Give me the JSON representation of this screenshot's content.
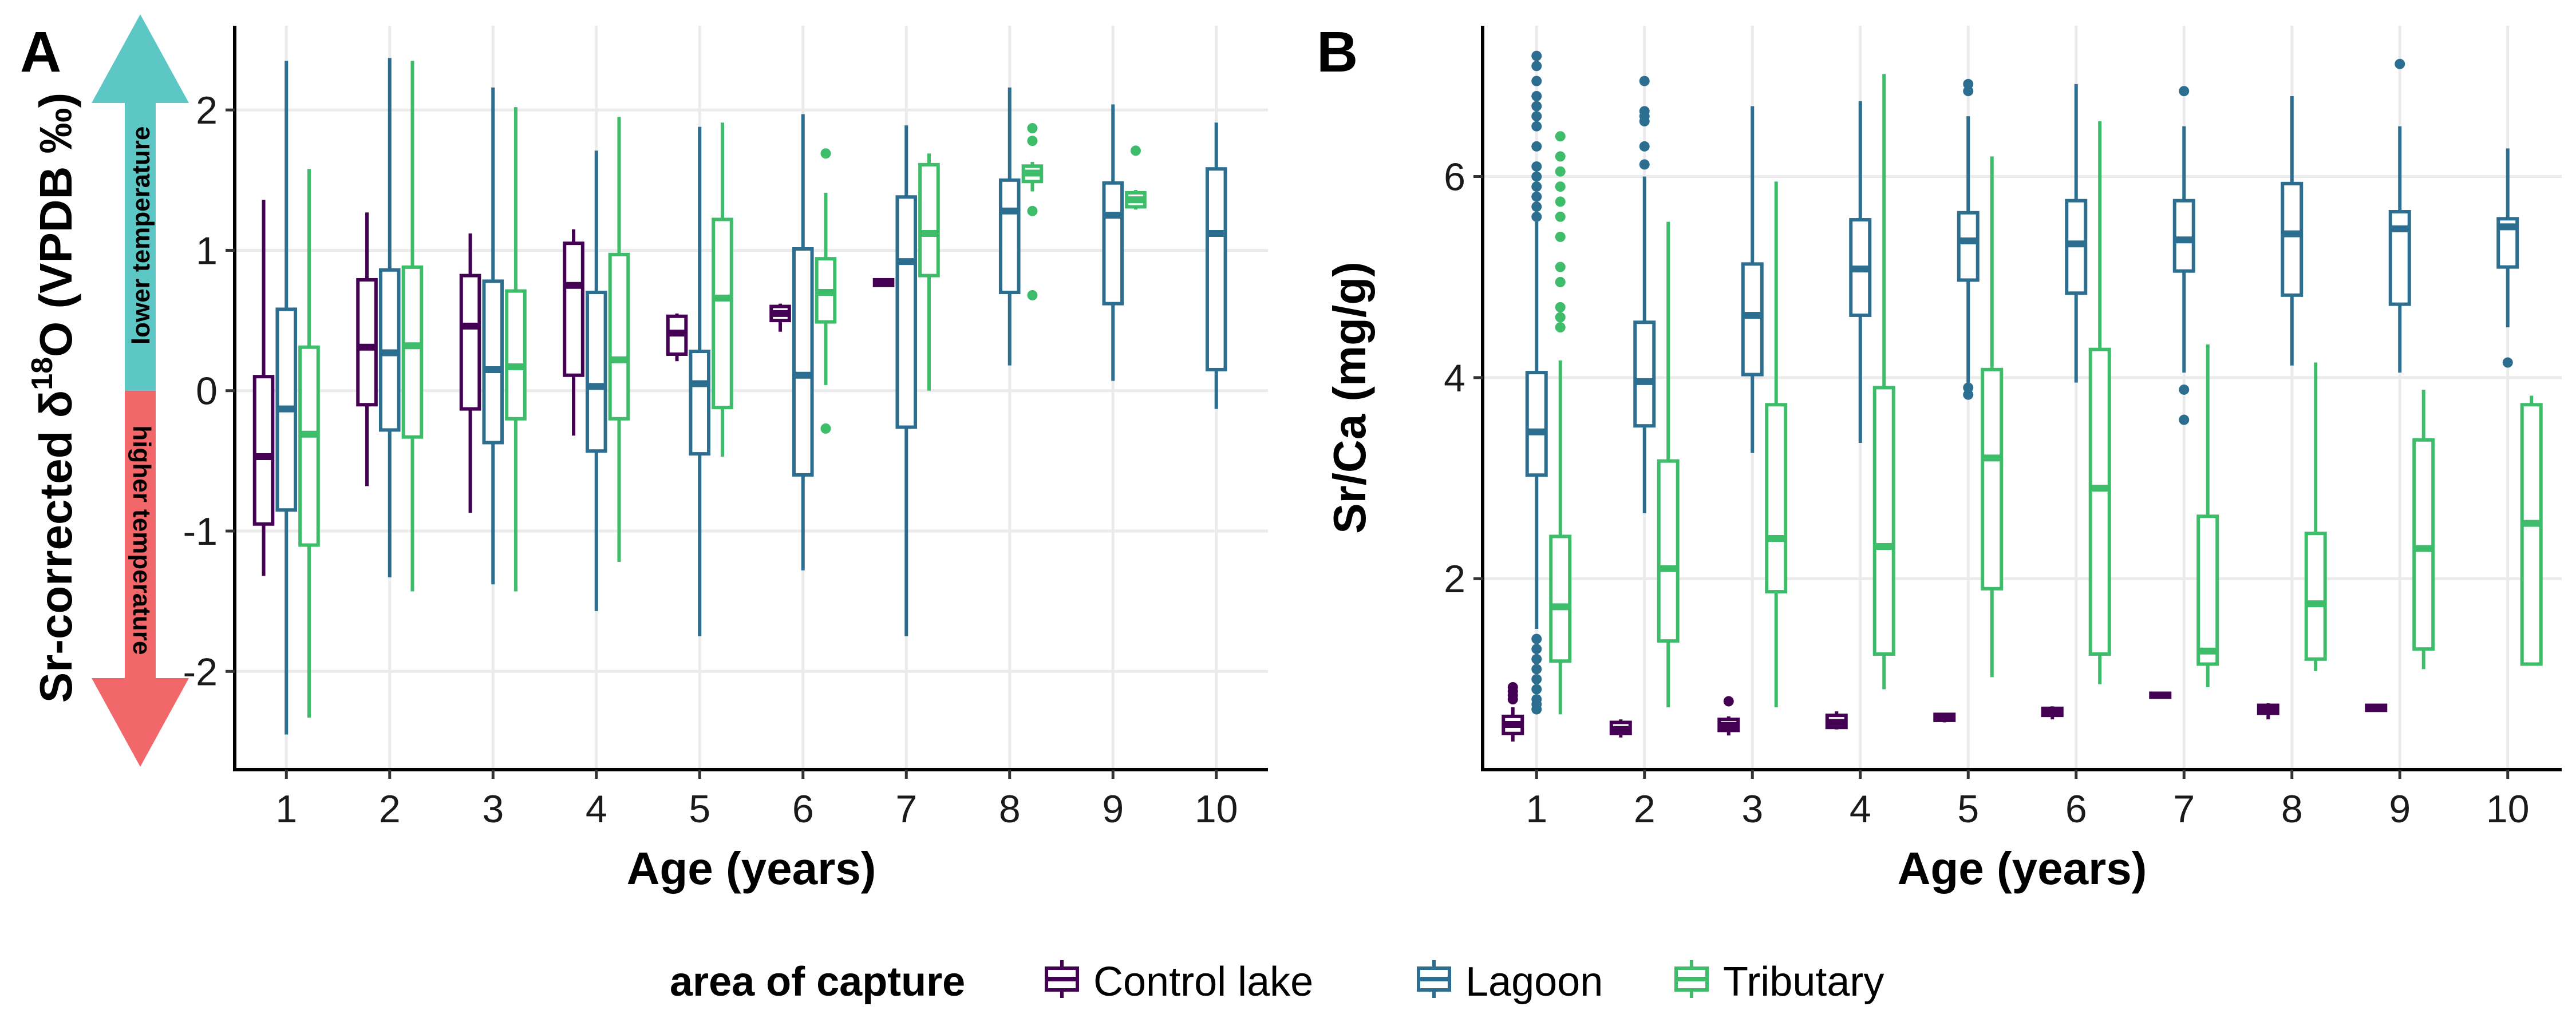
{
  "legend": {
    "title": "area of capture",
    "items": [
      {
        "label": "Control lake",
        "color": "#440154"
      },
      {
        "label": "Lagoon",
        "color": "#2c6e8f"
      },
      {
        "label": "Tributary",
        "color": "#3dbc6a"
      }
    ]
  },
  "arrow": {
    "top_label": "lower temperature",
    "bottom_label": "higher temperature",
    "top_color": "#5dc7c6",
    "bottom_color": "#f2676a"
  },
  "chart_data": [
    {
      "panel": "A",
      "type": "boxplot",
      "xlabel": "Age (years)",
      "ylabel_prefix": "Sr-corrected δ",
      "ylabel_superscript": "18",
      "ylabel_suffix": "O (VPDB ‰)",
      "categories": [
        "1",
        "2",
        "3",
        "4",
        "5",
        "6",
        "7",
        "8",
        "9",
        "10"
      ],
      "ylim": [
        -2.7,
        2.6
      ],
      "yticks": [
        -2,
        -1,
        0,
        1,
        2
      ],
      "grid": true,
      "series": [
        {
          "name": "Control lake",
          "boxes": [
            {
              "x": "1",
              "q1": -0.95,
              "median": -0.47,
              "q3": 0.1,
              "low": -1.32,
              "high": 1.36,
              "outliers": []
            },
            {
              "x": "2",
              "q1": -0.1,
              "median": 0.31,
              "q3": 0.79,
              "low": -0.68,
              "high": 1.27,
              "outliers": []
            },
            {
              "x": "3",
              "q1": -0.13,
              "median": 0.46,
              "q3": 0.82,
              "low": -0.87,
              "high": 1.12,
              "outliers": []
            },
            {
              "x": "4",
              "q1": 0.11,
              "median": 0.75,
              "q3": 1.05,
              "low": -0.32,
              "high": 1.15,
              "outliers": []
            },
            {
              "x": "5",
              "q1": 0.26,
              "median": 0.41,
              "q3": 0.53,
              "low": 0.21,
              "high": 0.55,
              "outliers": []
            },
            {
              "x": "6",
              "q1": 0.5,
              "median": 0.55,
              "q3": 0.6,
              "low": 0.42,
              "high": 0.62,
              "outliers": []
            },
            {
              "x": "7",
              "q1": 0.75,
              "median": 0.77,
              "q3": 0.79,
              "low": 0.74,
              "high": 0.8,
              "outliers": []
            }
          ]
        },
        {
          "name": "Lagoon",
          "boxes": [
            {
              "x": "1",
              "q1": -0.85,
              "median": -0.13,
              "q3": 0.58,
              "low": -2.45,
              "high": 2.35,
              "outliers": []
            },
            {
              "x": "2",
              "q1": -0.28,
              "median": 0.27,
              "q3": 0.86,
              "low": -1.33,
              "high": 2.37,
              "outliers": []
            },
            {
              "x": "3",
              "q1": -0.37,
              "median": 0.15,
              "q3": 0.78,
              "low": -1.38,
              "high": 2.16,
              "outliers": []
            },
            {
              "x": "4",
              "q1": -0.43,
              "median": 0.03,
              "q3": 0.7,
              "low": -1.57,
              "high": 1.71,
              "outliers": []
            },
            {
              "x": "5",
              "q1": -0.45,
              "median": 0.05,
              "q3": 0.28,
              "low": -1.75,
              "high": 1.88,
              "outliers": []
            },
            {
              "x": "6",
              "q1": -0.6,
              "median": 0.11,
              "q3": 1.01,
              "low": -1.28,
              "high": 1.97,
              "outliers": []
            },
            {
              "x": "7",
              "q1": -0.26,
              "median": 0.92,
              "q3": 1.38,
              "low": -1.75,
              "high": 1.89,
              "outliers": []
            },
            {
              "x": "8",
              "q1": 0.7,
              "median": 1.28,
              "q3": 1.5,
              "low": 0.18,
              "high": 2.16,
              "outliers": []
            },
            {
              "x": "9",
              "q1": 0.62,
              "median": 1.25,
              "q3": 1.48,
              "low": 0.07,
              "high": 2.04,
              "outliers": []
            },
            {
              "x": "10",
              "q1": 0.15,
              "median": 1.12,
              "q3": 1.58,
              "low": -0.13,
              "high": 1.91,
              "outliers": []
            }
          ]
        },
        {
          "name": "Tributary",
          "boxes": [
            {
              "x": "1",
              "q1": -1.1,
              "median": -0.31,
              "q3": 0.31,
              "low": -2.33,
              "high": 1.58,
              "outliers": []
            },
            {
              "x": "2",
              "q1": -0.33,
              "median": 0.32,
              "q3": 0.88,
              "low": -1.43,
              "high": 2.35,
              "outliers": []
            },
            {
              "x": "3",
              "q1": -0.2,
              "median": 0.17,
              "q3": 0.71,
              "low": -1.43,
              "high": 2.02,
              "outliers": []
            },
            {
              "x": "4",
              "q1": -0.2,
              "median": 0.22,
              "q3": 0.97,
              "low": -1.22,
              "high": 1.95,
              "outliers": []
            },
            {
              "x": "5",
              "q1": -0.12,
              "median": 0.66,
              "q3": 1.22,
              "low": -0.47,
              "high": 1.91,
              "outliers": []
            },
            {
              "x": "6",
              "q1": 0.49,
              "median": 0.7,
              "q3": 0.94,
              "low": 0.04,
              "high": 1.41,
              "outliers": [
                1.69,
                -0.27
              ]
            },
            {
              "x": "7",
              "q1": 0.82,
              "median": 1.12,
              "q3": 1.61,
              "low": 0.0,
              "high": 1.69,
              "outliers": []
            },
            {
              "x": "8",
              "q1": 1.49,
              "median": 1.55,
              "q3": 1.6,
              "low": 1.42,
              "high": 1.63,
              "outliers": [
                1.87,
                1.78,
                1.28,
                0.68
              ]
            },
            {
              "x": "9",
              "q1": 1.31,
              "median": 1.36,
              "q3": 1.41,
              "low": 1.29,
              "high": 1.43,
              "outliers": [
                1.71
              ]
            }
          ]
        }
      ]
    },
    {
      "panel": "B",
      "type": "boxplot",
      "xlabel": "Age (years)",
      "ylabel": "Sr/Ca (mg/g)",
      "categories": [
        "1",
        "2",
        "3",
        "4",
        "5",
        "6",
        "7",
        "8",
        "9",
        "10"
      ],
      "ylim": [
        0.1,
        7.5
      ],
      "yticks": [
        2,
        4,
        6
      ],
      "grid": true,
      "series": [
        {
          "name": "Control lake",
          "boxes": [
            {
              "x": "1",
              "q1": 0.46,
              "median": 0.55,
              "q3": 0.63,
              "low": 0.38,
              "high": 0.72,
              "outliers": [
                0.8,
                0.84,
                0.88,
                0.92
              ]
            },
            {
              "x": "2",
              "q1": 0.46,
              "median": 0.5,
              "q3": 0.57,
              "low": 0.42,
              "high": 0.6,
              "outliers": []
            },
            {
              "x": "3",
              "q1": 0.49,
              "median": 0.54,
              "q3": 0.6,
              "low": 0.44,
              "high": 0.63,
              "outliers": [
                0.78
              ]
            },
            {
              "x": "4",
              "q1": 0.52,
              "median": 0.57,
              "q3": 0.64,
              "low": 0.5,
              "high": 0.68,
              "outliers": []
            },
            {
              "x": "5",
              "q1": 0.59,
              "median": 0.62,
              "q3": 0.65,
              "low": 0.57,
              "high": 0.66,
              "outliers": []
            },
            {
              "x": "6",
              "q1": 0.64,
              "median": 0.68,
              "q3": 0.71,
              "low": 0.6,
              "high": 0.73,
              "outliers": []
            },
            {
              "x": "7",
              "q1": 0.82,
              "median": 0.84,
              "q3": 0.86,
              "low": 0.81,
              "high": 0.87,
              "outliers": []
            },
            {
              "x": "8",
              "q1": 0.66,
              "median": 0.7,
              "q3": 0.74,
              "low": 0.6,
              "high": 0.76,
              "outliers": []
            },
            {
              "x": "9",
              "q1": 0.69,
              "median": 0.72,
              "q3": 0.74,
              "low": 0.68,
              "high": 0.75,
              "outliers": []
            }
          ]
        },
        {
          "name": "Lagoon",
          "boxes": [
            {
              "x": "1",
              "q1": 3.03,
              "median": 3.46,
              "q3": 4.05,
              "low": 1.5,
              "high": 5.55,
              "outliers": [
                7.2,
                7.1,
                6.95,
                6.8,
                6.7,
                6.6,
                6.5,
                6.3,
                6.1,
                6.0,
                5.9,
                5.8,
                5.7,
                5.6,
                1.4,
                1.3,
                1.2,
                1.1,
                1.0,
                0.9,
                0.8,
                0.75,
                0.7
              ]
            },
            {
              "x": "2",
              "q1": 3.52,
              "median": 3.96,
              "q3": 4.55,
              "low": 2.65,
              "high": 6.0,
              "outliers": [
                6.95,
                6.65,
                6.6,
                6.55,
                6.3,
                6.12
              ]
            },
            {
              "x": "3",
              "q1": 4.03,
              "median": 4.62,
              "q3": 5.13,
              "low": 3.25,
              "high": 6.7,
              "outliers": []
            },
            {
              "x": "4",
              "q1": 4.62,
              "median": 5.08,
              "q3": 5.57,
              "low": 3.35,
              "high": 6.75,
              "outliers": []
            },
            {
              "x": "5",
              "q1": 4.97,
              "median": 5.36,
              "q3": 5.64,
              "low": 3.95,
              "high": 6.6,
              "outliers": [
                6.92,
                6.85,
                3.9,
                3.83
              ]
            },
            {
              "x": "6",
              "q1": 4.84,
              "median": 5.33,
              "q3": 5.76,
              "low": 3.95,
              "high": 6.92,
              "outliers": []
            },
            {
              "x": "7",
              "q1": 5.06,
              "median": 5.37,
              "q3": 5.76,
              "low": 4.05,
              "high": 6.5,
              "outliers": [
                6.85,
                3.88,
                3.58
              ]
            },
            {
              "x": "8",
              "q1": 4.82,
              "median": 5.43,
              "q3": 5.93,
              "low": 4.12,
              "high": 6.8,
              "outliers": []
            },
            {
              "x": "9",
              "q1": 4.73,
              "median": 5.48,
              "q3": 5.65,
              "low": 4.05,
              "high": 6.5,
              "outliers": [
                7.12
              ]
            },
            {
              "x": "10",
              "q1": 5.1,
              "median": 5.5,
              "q3": 5.58,
              "low": 4.5,
              "high": 6.28,
              "outliers": [
                4.15
              ]
            }
          ]
        },
        {
          "name": "Tributary",
          "boxes": [
            {
              "x": "1",
              "q1": 1.18,
              "median": 1.72,
              "q3": 2.42,
              "low": 0.65,
              "high": 4.17,
              "outliers": [
                6.4,
                6.2,
                6.05,
                5.9,
                5.75,
                5.6,
                5.4,
                5.1,
                4.95,
                4.7,
                4.6,
                4.5
              ]
            },
            {
              "x": "2",
              "q1": 1.38,
              "median": 2.1,
              "q3": 3.17,
              "low": 0.72,
              "high": 5.55,
              "outliers": []
            },
            {
              "x": "3",
              "q1": 1.87,
              "median": 2.4,
              "q3": 3.73,
              "low": 0.72,
              "high": 5.95,
              "outliers": []
            },
            {
              "x": "4",
              "q1": 1.25,
              "median": 2.32,
              "q3": 3.9,
              "low": 0.9,
              "high": 7.02,
              "outliers": []
            },
            {
              "x": "5",
              "q1": 1.9,
              "median": 3.2,
              "q3": 4.08,
              "low": 1.02,
              "high": 6.2,
              "outliers": []
            },
            {
              "x": "6",
              "q1": 1.25,
              "median": 2.9,
              "q3": 4.28,
              "low": 0.95,
              "high": 6.55,
              "outliers": []
            },
            {
              "x": "7",
              "q1": 1.15,
              "median": 1.28,
              "q3": 2.62,
              "low": 0.92,
              "high": 4.33,
              "outliers": []
            },
            {
              "x": "8",
              "q1": 1.2,
              "median": 1.75,
              "q3": 2.45,
              "low": 1.08,
              "high": 4.15,
              "outliers": []
            },
            {
              "x": "9",
              "q1": 1.3,
              "median": 2.3,
              "q3": 3.38,
              "low": 1.1,
              "high": 3.88,
              "outliers": []
            },
            {
              "x": "10",
              "q1": 1.15,
              "median": 2.55,
              "q3": 3.73,
              "low": 1.15,
              "high": 3.82,
              "outliers": []
            }
          ]
        }
      ]
    }
  ]
}
